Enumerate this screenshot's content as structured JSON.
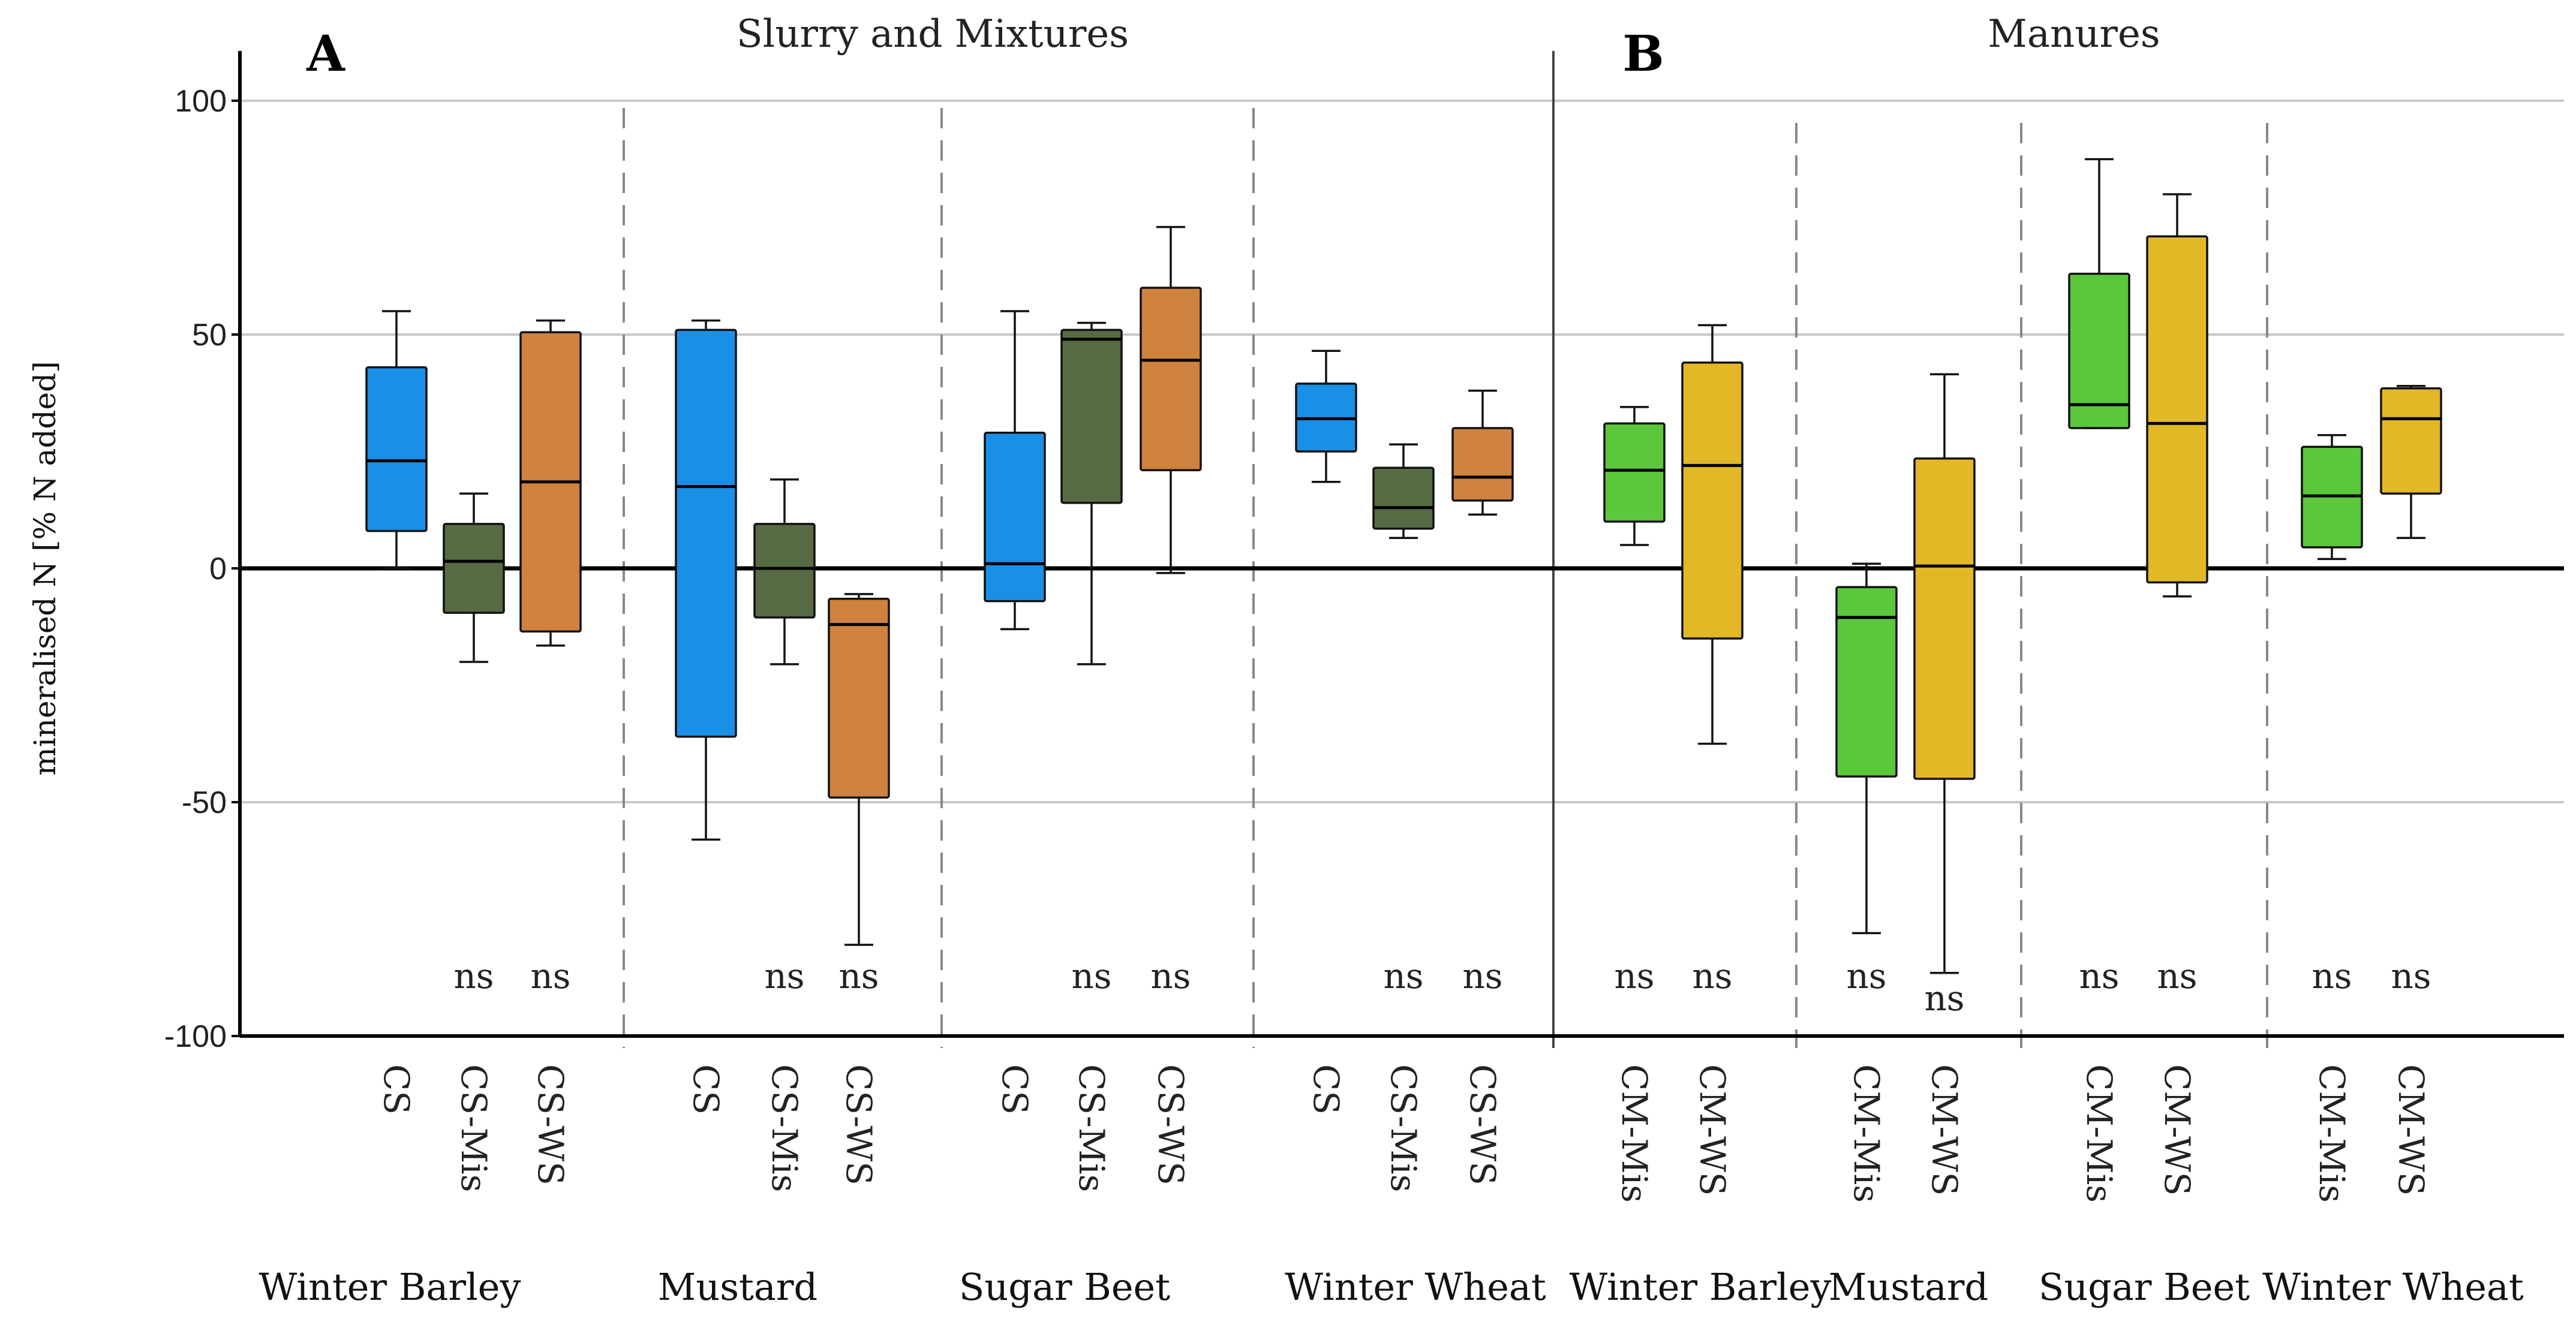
{
  "chart_data": {
    "type": "box",
    "ylabel": "mineralised N [% N added]",
    "ylim": [
      -100,
      100
    ],
    "yticks": [
      100,
      50,
      0,
      -50,
      -100
    ],
    "ytick_labels": [
      "100",
      "50",
      "0",
      "-50",
      "-100"
    ],
    "grid": true,
    "colors": {
      "CS": "#1a8fe6",
      "CS-Mis": "#566b43",
      "CS-WS": "#cf823d",
      "CM-Mis": "#5ac83a",
      "CM-WS": "#e2b826"
    },
    "panels": [
      {
        "letter": "A",
        "title": "Slurry and Mixtures",
        "groups": [
          {
            "crop": "Winter Barley",
            "boxes": [
              {
                "label": "CS",
                "whisker_high": 55,
                "q3": 43,
                "median": 23,
                "q1": 8,
                "whisker_low": 0,
                "sig": ""
              },
              {
                "label": "CS-Mis",
                "whisker_high": 16,
                "q3": 9.5,
                "median": 1.5,
                "q1": -9.5,
                "whisker_low": -20,
                "sig": "ns"
              },
              {
                "label": "CS-WS",
                "whisker_high": 53,
                "q3": 50.5,
                "median": 18.5,
                "q1": -13.5,
                "whisker_low": -16.5,
                "sig": "ns"
              }
            ]
          },
          {
            "crop": "Mustard",
            "boxes": [
              {
                "label": "CS",
                "whisker_high": 53,
                "q3": 51,
                "median": 17.5,
                "q1": -36,
                "whisker_low": -58,
                "sig": ""
              },
              {
                "label": "CS-Mis",
                "whisker_high": 19,
                "q3": 9.5,
                "median": 0,
                "q1": -10.5,
                "whisker_low": -20.5,
                "sig": "ns"
              },
              {
                "label": "CS-WS",
                "whisker_high": -5.5,
                "q3": -6.5,
                "median": -12,
                "q1": -49,
                "whisker_low": -80.5,
                "sig": "ns"
              }
            ]
          },
          {
            "crop": "Sugar Beet",
            "boxes": [
              {
                "label": "CS",
                "whisker_high": 55,
                "q3": 29,
                "median": 1,
                "q1": -7,
                "whisker_low": -13,
                "sig": ""
              },
              {
                "label": "CS-Mis",
                "whisker_high": 52.5,
                "q3": 51,
                "median": 49,
                "q1": 14,
                "whisker_low": -20.5,
                "sig": "ns"
              },
              {
                "label": "CS-WS",
                "whisker_high": 73,
                "q3": 60,
                "median": 44.5,
                "q1": 21,
                "whisker_low": -1,
                "sig": "ns"
              }
            ]
          },
          {
            "crop": "Winter Wheat",
            "boxes": [
              {
                "label": "CS",
                "whisker_high": 46.5,
                "q3": 39.5,
                "median": 32,
                "q1": 25,
                "whisker_low": 18.5,
                "sig": ""
              },
              {
                "label": "CS-Mis",
                "whisker_high": 26.5,
                "q3": 21.5,
                "median": 13,
                "q1": 8.5,
                "whisker_low": 6.5,
                "sig": "ns"
              },
              {
                "label": "CS-WS",
                "whisker_high": 38,
                "q3": 30,
                "median": 19.5,
                "q1": 14.5,
                "whisker_low": 11.5,
                "sig": "ns"
              }
            ]
          }
        ]
      },
      {
        "letter": "B",
        "title": "Manures",
        "groups": [
          {
            "crop": "Winter Barley",
            "boxes": [
              {
                "label": "CM-Mis",
                "whisker_high": 34.5,
                "q3": 31,
                "median": 21,
                "q1": 10,
                "whisker_low": 5,
                "sig": "ns"
              },
              {
                "label": "CM-WS",
                "whisker_high": 52,
                "q3": 44,
                "median": 22,
                "q1": -15,
                "whisker_low": -37.5,
                "sig": "ns"
              }
            ]
          },
          {
            "crop": "Mustard",
            "boxes": [
              {
                "label": "CM-Mis",
                "whisker_high": 1,
                "q3": -4,
                "median": -10.5,
                "q1": -44.5,
                "whisker_low": -78,
                "sig": "ns"
              },
              {
                "label": "CM-WS",
                "whisker_high": 41.5,
                "q3": 23.5,
                "median": 0.5,
                "q1": -45,
                "whisker_low": -86.5,
                "sig": "ns"
              }
            ]
          },
          {
            "crop": "Sugar Beet",
            "boxes": [
              {
                "label": "CM-Mis",
                "whisker_high": 87.5,
                "q3": 63,
                "median": 35,
                "q1": 30,
                "whisker_low": 30,
                "sig": "ns"
              },
              {
                "label": "CM-WS",
                "whisker_high": 80,
                "q3": 71,
                "median": 31,
                "q1": -3,
                "whisker_low": -6,
                "sig": "ns"
              }
            ]
          },
          {
            "crop": "Winter Wheat",
            "boxes": [
              {
                "label": "CM-Mis",
                "whisker_high": 28.5,
                "q3": 26,
                "median": 15.5,
                "q1": 4.5,
                "whisker_low": 2,
                "sig": "ns"
              },
              {
                "label": "CM-WS",
                "whisker_high": 39,
                "q3": 38.5,
                "median": 32,
                "q1": 16,
                "whisker_low": 6.5,
                "sig": "ns"
              }
            ]
          }
        ]
      }
    ]
  }
}
